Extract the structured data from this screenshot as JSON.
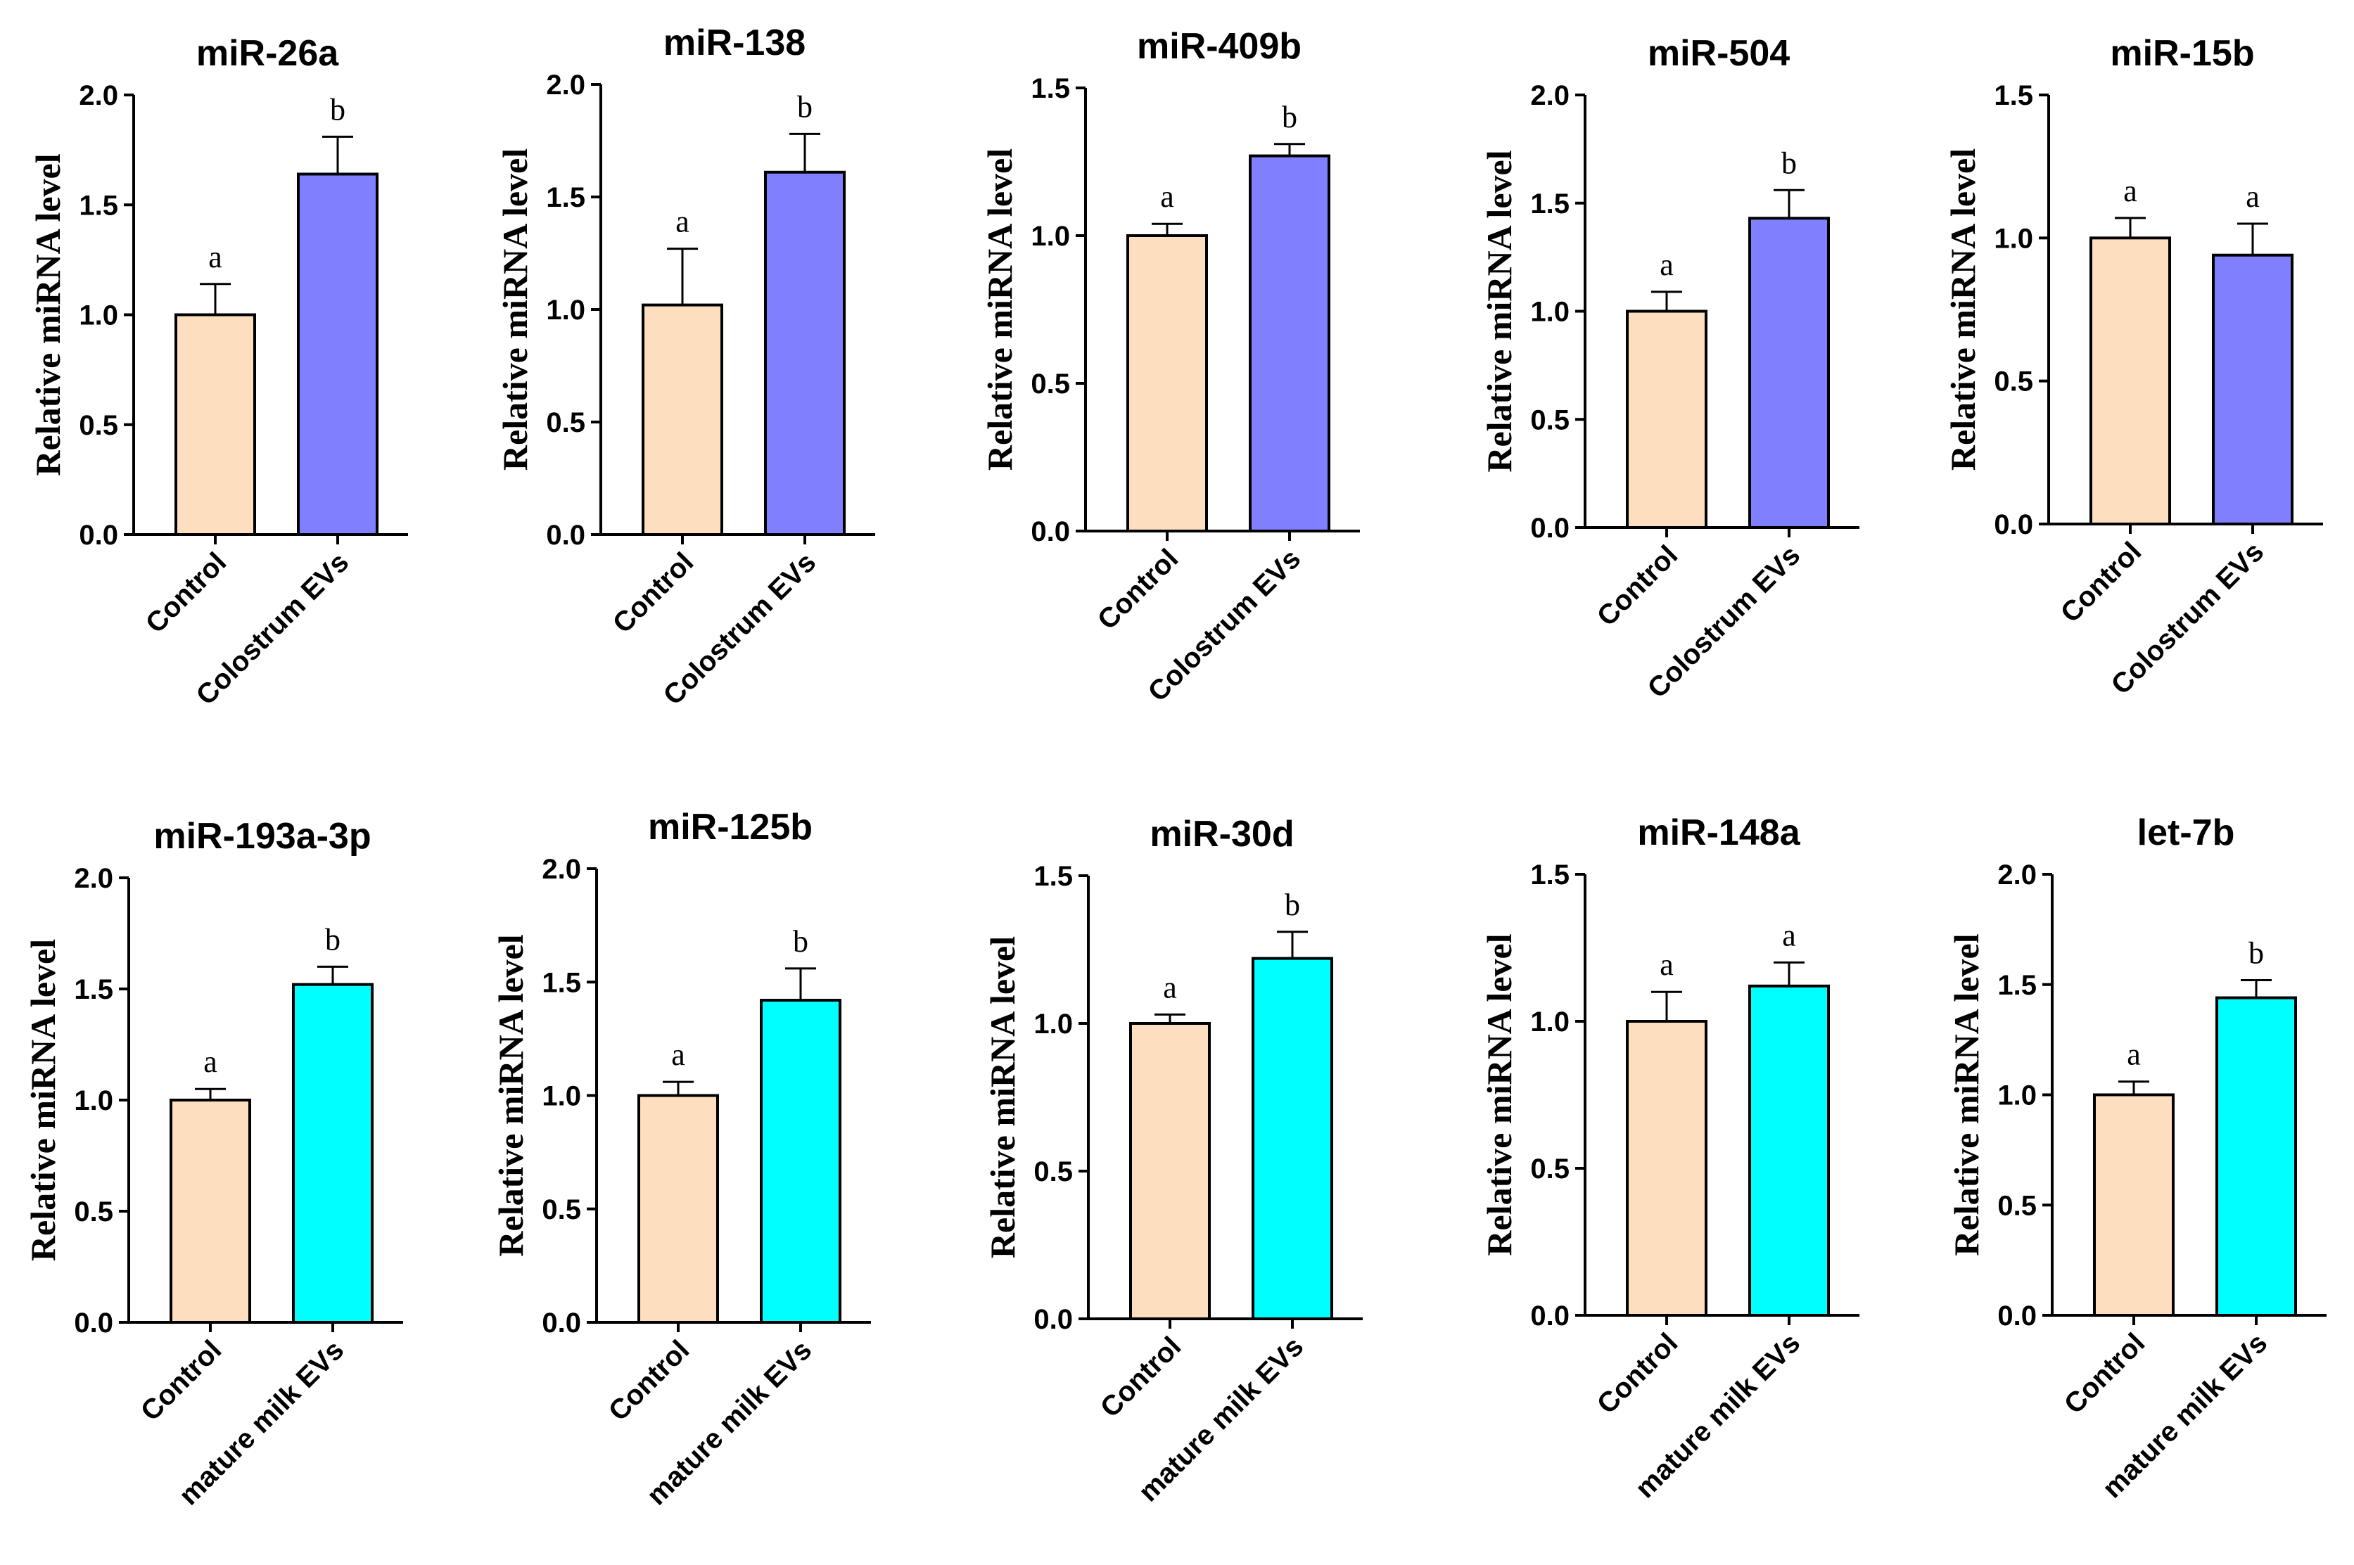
{
  "colors": {
    "control": "#FDDFBF",
    "colostrum": "#8080FF",
    "mature": "#00FFFF",
    "stroke": "#000000"
  },
  "chart_data": [
    {
      "type": "bar",
      "title": "miR-26a",
      "ylabel": "Relative miRNA level",
      "ylim": [
        0,
        2.0
      ],
      "yticks": [
        "0.0",
        "0.5",
        "1.0",
        "1.5",
        "2.0"
      ],
      "categories": [
        "Control",
        "Colostrum EVs"
      ],
      "values": [
        1.0,
        1.64
      ],
      "errors": [
        0.14,
        0.17
      ],
      "significance": [
        "a",
        "b"
      ],
      "series_colors": [
        "control",
        "colostrum"
      ]
    },
    {
      "type": "bar",
      "title": "miR-138",
      "ylabel": "Relative miRNA level",
      "ylim": [
        0,
        2.0
      ],
      "yticks": [
        "0.0",
        "0.5",
        "1.0",
        "1.5",
        "2.0"
      ],
      "categories": [
        "Control",
        "Colostrum EVs"
      ],
      "values": [
        1.02,
        1.61
      ],
      "errors": [
        0.25,
        0.17
      ],
      "significance": [
        "a",
        "b"
      ],
      "series_colors": [
        "control",
        "colostrum"
      ]
    },
    {
      "type": "bar",
      "title": "miR-409b",
      "ylabel": "Relative miRNA level",
      "ylim": [
        0,
        1.5
      ],
      "yticks": [
        "0.0",
        "0.5",
        "1.0",
        "1.5"
      ],
      "categories": [
        "Control",
        "Colostrum EVs"
      ],
      "values": [
        1.0,
        1.27
      ],
      "errors": [
        0.04,
        0.04
      ],
      "significance": [
        "a",
        "b"
      ],
      "series_colors": [
        "control",
        "colostrum"
      ]
    },
    {
      "type": "bar",
      "title": "miR-504",
      "ylabel": "Relative miRNA level",
      "ylim": [
        0,
        2.0
      ],
      "yticks": [
        "0.0",
        "0.5",
        "1.0",
        "1.5",
        "2.0"
      ],
      "categories": [
        "Control",
        "Colostrum EVs"
      ],
      "values": [
        1.0,
        1.43
      ],
      "errors": [
        0.09,
        0.13
      ],
      "significance": [
        "a",
        "b"
      ],
      "series_colors": [
        "control",
        "colostrum"
      ]
    },
    {
      "type": "bar",
      "title": "miR-15b",
      "ylabel": "Relative miRNA level",
      "ylim": [
        0,
        1.5
      ],
      "yticks": [
        "0.0",
        "0.5",
        "1.0",
        "1.5"
      ],
      "categories": [
        "Control",
        "Colostrum EVs"
      ],
      "values": [
        1.0,
        0.94
      ],
      "errors": [
        0.07,
        0.11
      ],
      "significance": [
        "a",
        "a"
      ],
      "series_colors": [
        "control",
        "colostrum"
      ]
    },
    {
      "type": "bar",
      "title": "miR-193a-3p",
      "ylabel": "Relative miRNA level",
      "ylim": [
        0,
        2.0
      ],
      "yticks": [
        "0.0",
        "0.5",
        "1.0",
        "1.5",
        "2.0"
      ],
      "categories": [
        "Control",
        "mature milk EVs"
      ],
      "values": [
        1.0,
        1.52
      ],
      "errors": [
        0.05,
        0.08
      ],
      "significance": [
        "a",
        "b"
      ],
      "series_colors": [
        "control",
        "mature"
      ]
    },
    {
      "type": "bar",
      "title": "miR-125b",
      "ylabel": "Relative miRNA level",
      "ylim": [
        0,
        2.0
      ],
      "yticks": [
        "0.0",
        "0.5",
        "1.0",
        "1.5",
        "2.0"
      ],
      "categories": [
        "Control",
        "mature milk EVs"
      ],
      "values": [
        1.0,
        1.42
      ],
      "errors": [
        0.06,
        0.14
      ],
      "significance": [
        "a",
        "b"
      ],
      "series_colors": [
        "control",
        "mature"
      ]
    },
    {
      "type": "bar",
      "title": "miR-30d",
      "ylabel": "Relative miRNA level",
      "ylim": [
        0,
        1.5
      ],
      "yticks": [
        "0.0",
        "0.5",
        "1.0",
        "1.5"
      ],
      "categories": [
        "Control",
        "mature milk EVs"
      ],
      "values": [
        1.0,
        1.22
      ],
      "errors": [
        0.03,
        0.09
      ],
      "significance": [
        "a",
        "b"
      ],
      "series_colors": [
        "control",
        "mature"
      ]
    },
    {
      "type": "bar",
      "title": "miR-148a",
      "ylabel": "Relative miRNA level",
      "ylim": [
        0,
        1.5
      ],
      "yticks": [
        "0.0",
        "0.5",
        "1.0",
        "1.5"
      ],
      "categories": [
        "Control",
        "mature milk EVs"
      ],
      "values": [
        1.0,
        1.12
      ],
      "errors": [
        0.1,
        0.08
      ],
      "significance": [
        "a",
        "a"
      ],
      "series_colors": [
        "control",
        "mature"
      ]
    },
    {
      "type": "bar",
      "title": "let-7b",
      "ylabel": "Relative miRNA level",
      "ylim": [
        0,
        2.0
      ],
      "yticks": [
        "0.0",
        "0.5",
        "1.0",
        "1.5",
        "2.0"
      ],
      "categories": [
        "Control",
        "mature milk EVs"
      ],
      "values": [
        1.0,
        1.44
      ],
      "errors": [
        0.06,
        0.08
      ],
      "significance": [
        "a",
        "b"
      ],
      "series_colors": [
        "control",
        "mature"
      ]
    }
  ]
}
